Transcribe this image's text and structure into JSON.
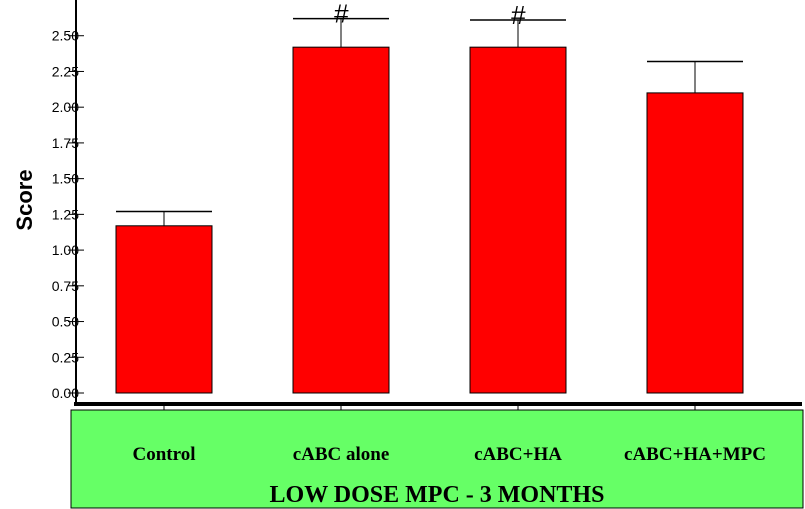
{
  "chart_data": {
    "type": "bar",
    "title": "LOW DOSE MPC - 3 MONTHS",
    "ylabel": "Score",
    "xlabel": "",
    "categories": [
      "Control",
      "cABC alone",
      "cABC+HA",
      "cABC+HA+MPC"
    ],
    "values": [
      1.17,
      2.42,
      2.42,
      2.1
    ],
    "errors": [
      0.1,
      0.2,
      0.19,
      0.22
    ],
    "annotations": [
      "",
      "#",
      "#",
      ""
    ],
    "ylim": [
      0,
      2.75
    ],
    "yticks": [
      "0.00",
      "0.25",
      "0.50",
      "0.75",
      "1.00",
      "1.25",
      "1.50",
      "1.75",
      "2.00",
      "2.25",
      "2.50"
    ],
    "grid": false,
    "legend": "none",
    "colors": {
      "bar_fill": "#ff0000",
      "bar_stroke": "#000000",
      "footer_fill": "#66ff66"
    }
  }
}
